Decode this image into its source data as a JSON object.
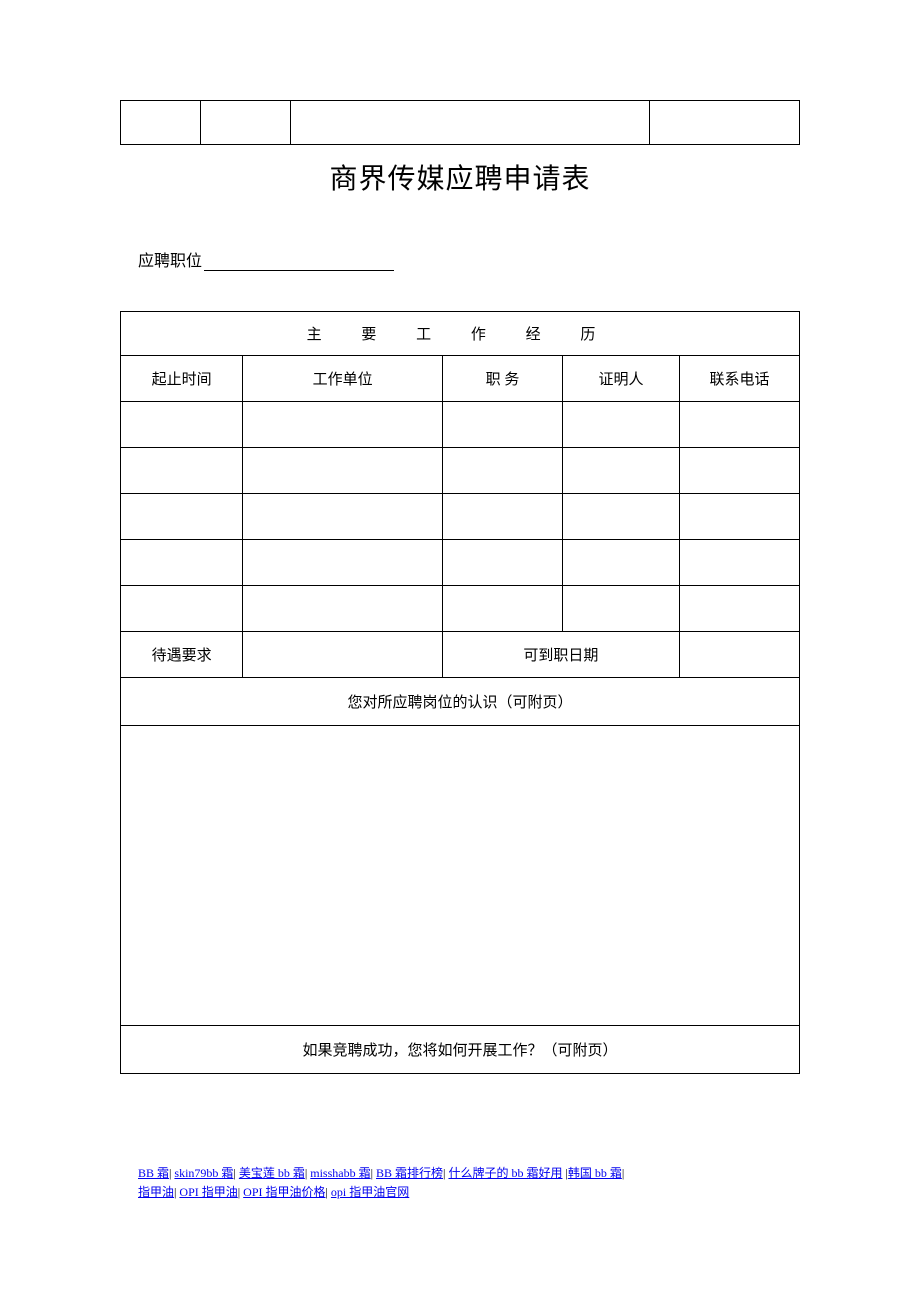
{
  "title": "商界传媒应聘申请表",
  "position_label": "应聘职位",
  "work_history": {
    "section_title": "主 要 工 作 经 历",
    "columns": [
      "起止时间",
      "工作单位",
      "职   务",
      "证明人",
      "联系电话"
    ]
  },
  "salary_label": "待遇要求",
  "start_date_label": "可到职日期",
  "understanding_label": "您对所应聘岗位的认识（可附页）",
  "plan_label": "如果竞聘成功，您将如何开展工作？（可附页）",
  "footer_links": [
    "BB 霜",
    "skin79bb 霜",
    "美宝莲 bb 霜",
    "misshabb 霜",
    "BB 霜排行榜",
    "什么牌子的 bb 霜好用",
    "韩国 bb 霜",
    "指甲油",
    "OPI 指甲油",
    "OPI 指甲油价格",
    "opi 指甲油官网"
  ],
  "break_after_index": 6
}
